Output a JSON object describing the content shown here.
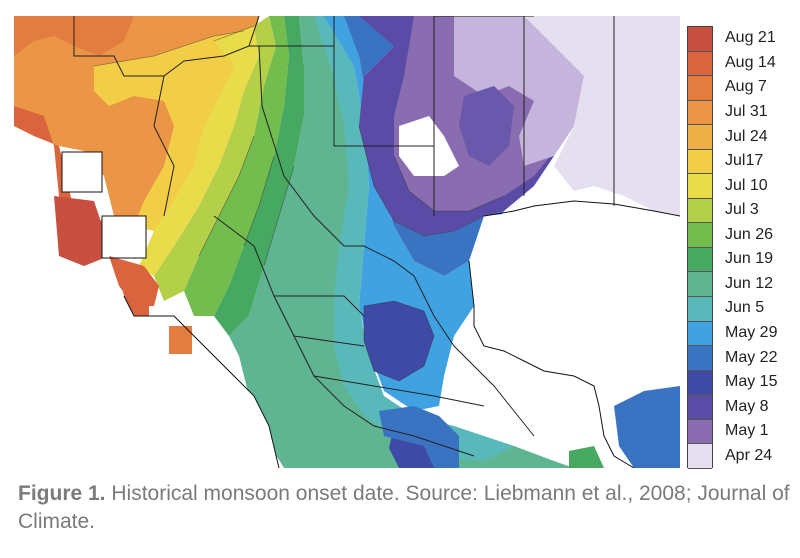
{
  "legend": {
    "items": [
      {
        "label": "Aug 21",
        "color": "#c84e3f"
      },
      {
        "label": "Aug 14",
        "color": "#d9643e"
      },
      {
        "label": "Aug 7",
        "color": "#e37d3f"
      },
      {
        "label": "Jul 31",
        "color": "#ea9646"
      },
      {
        "label": "Jul 24",
        "color": "#eeaf45"
      },
      {
        "label": "Jul17",
        "color": "#f2cd46"
      },
      {
        "label": "Jul 10",
        "color": "#e8dc4a"
      },
      {
        "label": "Jul 3",
        "color": "#b4d049"
      },
      {
        "label": "Jun 26",
        "color": "#72bd4e"
      },
      {
        "label": "Jun 19",
        "color": "#47a861"
      },
      {
        "label": "Jun 12",
        "color": "#5fb591"
      },
      {
        "label": "Jun 5",
        "color": "#59b8b9"
      },
      {
        "label": "May 29",
        "color": "#41a2e2"
      },
      {
        "label": "May 22",
        "color": "#3b73c3"
      },
      {
        "label": "May 15",
        "color": "#3e4aa6"
      },
      {
        "label": "May 8",
        "color": "#5a4ba6"
      },
      {
        "label": "May 1",
        "color": "#8a6cb0"
      },
      {
        "label": "Apr 24",
        "color": "#e6dff0"
      }
    ]
  },
  "caption": {
    "figure_label": "Figure 1.",
    "text": " Historical monsoon onset date. Source: Liebmann et al., 2008; Journal of Climate."
  }
}
